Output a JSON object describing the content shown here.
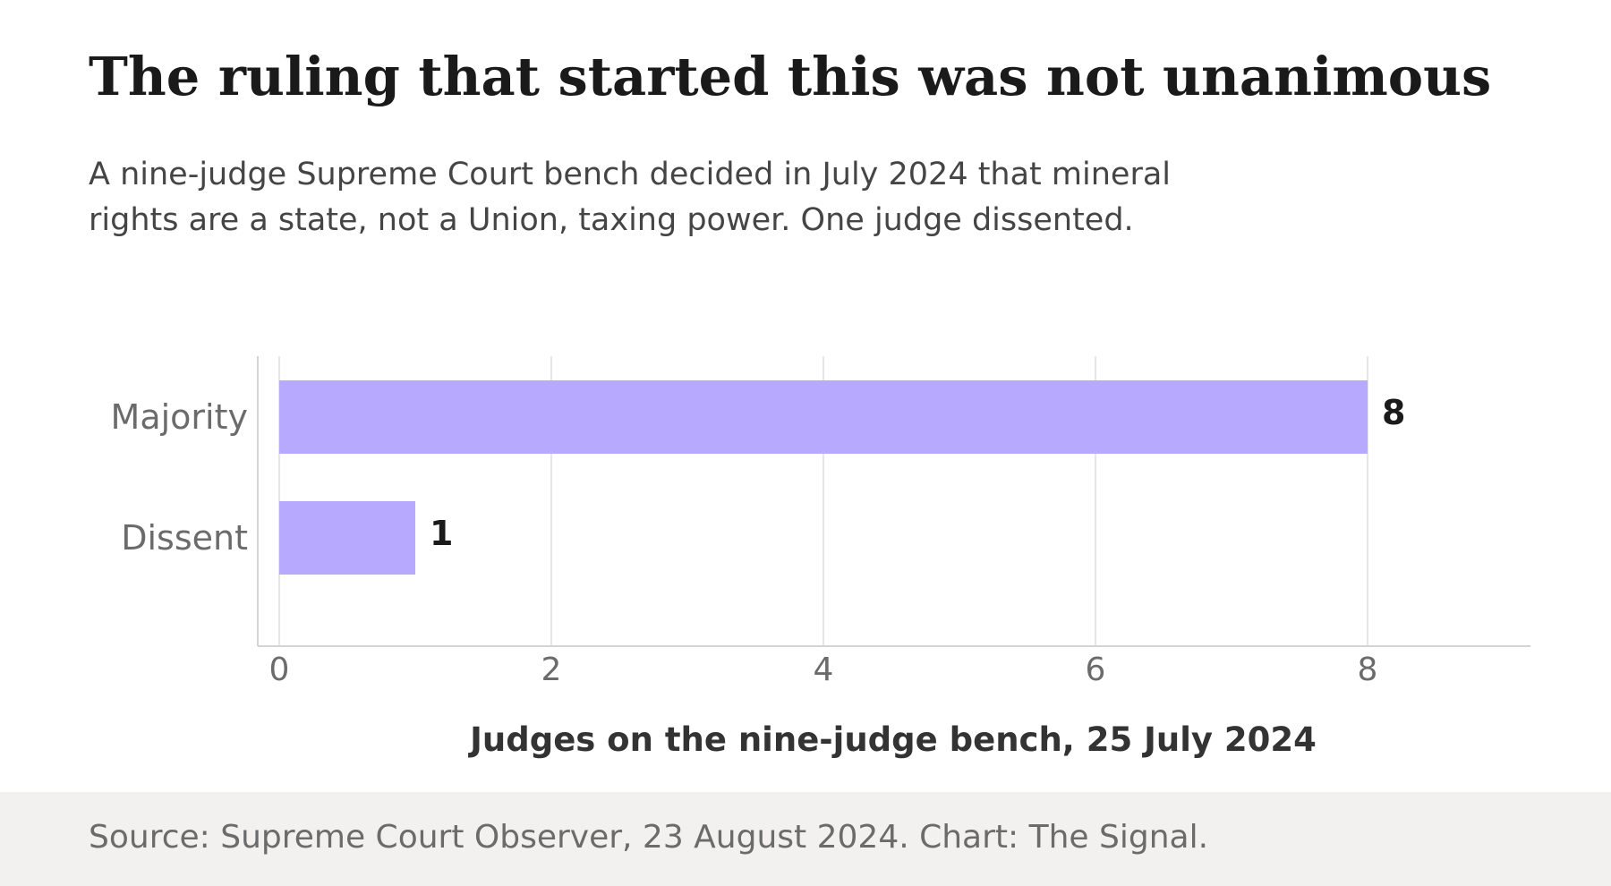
{
  "header": {
    "title": "The ruling that started this was not unanimous",
    "subtitle_lines": [
      "A nine-judge Supreme Court bench decided in July 2024 that mineral",
      "rights are a state, not a Union, taxing power. One judge dissented."
    ]
  },
  "chart_data": {
    "type": "bar",
    "orientation": "horizontal",
    "categories": [
      "Majority",
      "Dissent"
    ],
    "values": [
      8,
      1
    ],
    "data_labels": [
      "8",
      "1"
    ],
    "x_ticks": [
      0,
      2,
      4,
      6,
      8
    ],
    "xlim": [
      0,
      9.3
    ],
    "xlabel": "Judges on the nine-judge bench, 25 July 2024",
    "grid": "vertical",
    "colors": {
      "bar": "#b7a9fd",
      "grid": "#e6e6e6",
      "axis": "#d4d4d4",
      "tick_text": "#6b6b6b",
      "value_text": "#1a1a1a",
      "xlabel_text": "#333333"
    }
  },
  "footer": {
    "source": "Source: Supreme Court Observer, 23 August 2024. Chart: The Signal."
  }
}
